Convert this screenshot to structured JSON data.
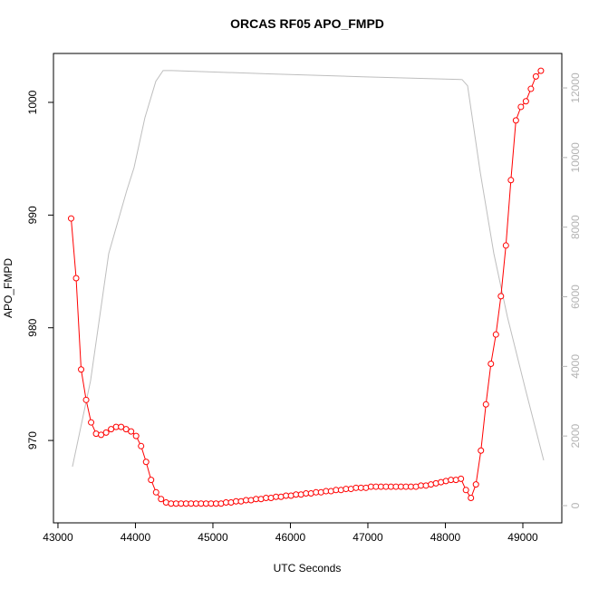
{
  "chart_data": {
    "type": "line",
    "title": "ORCAS RF05 APO_FMPD",
    "x_label": "UTC Seconds",
    "y_label": "APO_FMPD",
    "xlim": [
      42942,
      49503
    ],
    "ylim": [
      962.69,
      1004.34
    ],
    "y2lim": [
      -495,
      12990
    ],
    "xticks": [
      43000,
      44000,
      45000,
      46000,
      47000,
      48000,
      49000
    ],
    "yticks": [
      970,
      980,
      990,
      1000
    ],
    "y2ticks": [
      0,
      2000,
      4000,
      6000,
      8000,
      10000,
      12000
    ],
    "y2_color": "#b3b3b3",
    "series": [
      {
        "color": "#ff0000",
        "marker": "circle",
        "x": [
          43170,
          43234.5,
          43299,
          43363.5,
          43428,
          43492.5,
          43557,
          43621.5,
          43686,
          43750.5,
          43815,
          43879.5,
          43944,
          44008.5,
          44073,
          44137.5,
          44202,
          44266.5,
          44331,
          44395.5,
          44460,
          44524.5,
          44589,
          44653.5,
          44718,
          44782.5,
          44847,
          44911.5,
          44976,
          45040.5,
          45105,
          45169.5,
          45234,
          45298.5,
          45363,
          45427.5,
          45492,
          45556.5,
          45621,
          45685.5,
          45750,
          45814.5,
          45879,
          45943.5,
          46008,
          46072.5,
          46137,
          46201.5,
          46266,
          46330.5,
          46395,
          46459.5,
          46524,
          46588.5,
          46653,
          46717.5,
          46782,
          46846.5,
          46911,
          46975.5,
          47040,
          47104.5,
          47169,
          47233.5,
          47298,
          47362.5,
          47427,
          47491.5,
          47556,
          47620.5,
          47685,
          47749.5,
          47814,
          47878.5,
          47943,
          48007.5,
          48072,
          48136.5,
          48201,
          48265.5,
          48330,
          48394.5,
          48459,
          48523.5,
          48588,
          48652.5,
          48717,
          48781.5,
          48846,
          48910.5,
          48975,
          49039.5,
          49104,
          49168.5,
          49233
        ],
        "values": [
          989.7,
          984.4,
          976.3,
          973.6,
          971.6,
          970.6,
          970.5,
          970.7,
          971.0,
          971.2,
          971.2,
          971.0,
          970.8,
          970.4,
          969.5,
          968.1,
          966.5,
          965.4,
          964.8,
          964.5,
          964.4,
          964.4,
          964.4,
          964.4,
          964.4,
          964.4,
          964.4,
          964.4,
          964.4,
          964.4,
          964.4,
          964.5,
          964.5,
          964.6,
          964.6,
          964.7,
          964.7,
          964.8,
          964.8,
          964.9,
          964.9,
          965.0,
          965.0,
          965.1,
          965.1,
          965.2,
          965.2,
          965.3,
          965.3,
          965.4,
          965.4,
          965.5,
          965.5,
          965.6,
          965.6,
          965.7,
          965.7,
          965.8,
          965.8,
          965.8,
          965.9,
          965.9,
          965.9,
          965.9,
          965.9,
          965.9,
          965.9,
          965.9,
          965.9,
          965.9,
          966.0,
          966.0,
          966.1,
          966.2,
          966.3,
          966.4,
          966.5,
          966.5,
          966.6,
          965.6,
          964.9,
          966.1,
          969.1,
          973.2,
          976.8,
          979.4,
          982.8,
          987.3,
          993.1,
          998.4,
          999.6,
          1000.1,
          1001.2,
          1002.3,
          1002.8
        ]
      },
      {
        "color": "#bebebe",
        "axis": "y2",
        "x": [
          43187,
          43421,
          43655,
          43889,
          43982,
          44123,
          44263,
          44357,
          44474,
          45760,
          46930,
          48216,
          48287,
          48450,
          48626,
          48801,
          49035,
          49269
        ],
        "values": [
          1120,
          3590,
          7240,
          9060,
          9710,
          11150,
          12190,
          12500,
          12500,
          12400,
          12320,
          12240,
          12060,
          9580,
          7240,
          5420,
          3330,
          1300
        ]
      }
    ]
  }
}
